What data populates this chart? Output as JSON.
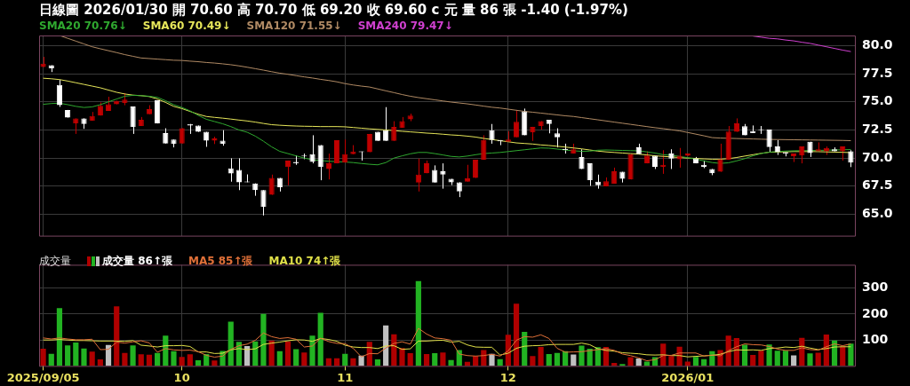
{
  "chart_data": [
    {
      "type": "candlestick",
      "title": "日線圖 2026/01/30 開 70.60 高 70.70 低 69.20 收 69.60 c 元 量 86 張 -1.40 (-1.97%)",
      "categories": [
        "2025/09/05",
        null,
        null,
        null,
        null,
        null,
        null,
        null,
        null,
        null,
        null,
        null,
        null,
        null,
        null,
        null,
        null,
        "10",
        null,
        null,
        null,
        null,
        null,
        null,
        null,
        null,
        null,
        null,
        null,
        null,
        null,
        null,
        null,
        null,
        null,
        null,
        null,
        "11",
        null,
        null,
        null,
        null,
        null,
        null,
        null,
        null,
        null,
        null,
        null,
        null,
        null,
        null,
        null,
        null,
        null,
        null,
        null,
        "12",
        null,
        null,
        null,
        null,
        null,
        null,
        null,
        null,
        null,
        null,
        null,
        null,
        null,
        null,
        null,
        null,
        null,
        null,
        null,
        null,
        null,
        "2026/01",
        null,
        null,
        null,
        null,
        null,
        null,
        null,
        null,
        null,
        null,
        null,
        null,
        null,
        null,
        null,
        null,
        null,
        null,
        null,
        null
      ],
      "series": [
        {
          "type": "candlestick",
          "ohlc": [
            [
              78.1,
              79.0,
              78.1,
              78.4
            ],
            [
              78.25,
              78.25,
              77.65,
              77.98
            ],
            [
              76.5,
              76.95,
              74.55,
              74.7
            ],
            [
              74.28,
              74.28,
              73.6,
              73.6
            ],
            [
              73.08,
              73.53,
              72.15,
              73.53
            ],
            [
              73.53,
              73.53,
              72.6,
              73.03
            ],
            [
              73.33,
              74.1,
              73.33,
              73.73
            ],
            [
              73.78,
              74.95,
              73.78,
              74.65
            ],
            [
              74.2,
              75.45,
              74.2,
              74.78
            ],
            [
              74.78,
              75.1,
              74.78,
              75.08
            ],
            [
              74.9,
              75.78,
              74.7,
              75.2
            ],
            [
              74.58,
              74.58,
              72.15,
              72.78
            ],
            [
              72.85,
              73.65,
              72.85,
              73.4
            ],
            [
              73.9,
              74.7,
              73.9,
              74.35
            ],
            [
              75.15,
              75.15,
              73.08,
              73.08
            ],
            [
              72.23,
              72.65,
              71.3,
              71.3
            ],
            [
              71.65,
              71.65,
              70.95,
              71.25
            ],
            [
              71.3,
              72.65,
              71.3,
              72.65
            ],
            [
              73.03,
              73.03,
              72.15,
              72.9
            ],
            [
              72.9,
              72.9,
              72.33,
              72.33
            ],
            [
              72.33,
              72.33,
              71.0,
              71.55
            ],
            [
              71.55,
              71.9,
              71.25,
              71.75
            ],
            [
              71.55,
              72.48,
              71.1,
              71.28
            ],
            [
              69.08,
              69.98,
              67.9,
              68.63
            ],
            [
              68.95,
              69.98,
              67.15,
              67.85
            ],
            [
              67.9,
              68.55,
              67.85,
              67.85
            ],
            [
              67.75,
              67.75,
              66.65,
              67.15
            ],
            [
              67.15,
              67.15,
              64.9,
              65.65
            ],
            [
              66.73,
              68.53,
              66.73,
              68.23
            ],
            [
              68.23,
              68.23,
              67.03,
              67.4
            ],
            [
              69.23,
              69.78,
              67.58,
              69.78
            ],
            [
              69.65,
              70.23,
              69.4,
              69.53
            ],
            [
              70.23,
              70.4,
              69.9,
              70.15
            ],
            [
              70.35,
              72.03,
              69.53,
              69.65
            ],
            [
              71.15,
              71.15,
              68.03,
              69.23
            ],
            [
              69.03,
              70.4,
              68.1,
              69.53
            ],
            [
              69.53,
              71.58,
              69.53,
              71.58
            ],
            [
              69.6,
              71.65,
              69.6,
              70.35
            ],
            [
              70.35,
              71.15,
              70.35,
              70.58
            ],
            [
              70.58,
              70.58,
              69.78,
              70.53
            ],
            [
              70.53,
              72.15,
              70.53,
              72.15
            ],
            [
              72.33,
              72.33,
              71.53,
              71.53
            ],
            [
              72.48,
              74.53,
              71.53,
              71.53
            ],
            [
              71.53,
              73.28,
              71.53,
              72.78
            ],
            [
              72.7,
              73.65,
              72.7,
              73.28
            ],
            [
              73.45,
              73.95,
              73.28,
              73.78
            ],
            [
              67.83,
              69.95,
              67.03,
              68.53
            ],
            [
              68.65,
              69.78,
              68.65,
              69.53
            ],
            [
              68.95,
              69.35,
              67.83,
              67.83
            ],
            [
              68.83,
              69.53,
              67.28,
              68.53
            ],
            [
              68.15,
              68.15,
              67.6,
              67.85
            ],
            [
              67.85,
              67.85,
              66.53,
              67.03
            ],
            [
              67.9,
              69.4,
              67.9,
              68.2
            ],
            [
              68.23,
              69.85,
              68.23,
              69.85
            ],
            [
              69.85,
              72.03,
              69.85,
              71.6
            ],
            [
              72.48,
              73.03,
              71.28,
              71.6
            ],
            [
              71.6,
              71.6,
              71.15,
              71.5
            ],
            [
              71.45,
              72.4,
              71.45,
              71.65
            ],
            [
              71.85,
              74.28,
              71.85,
              73.23
            ],
            [
              74.15,
              74.4,
              72.03,
              72.03
            ],
            [
              72.28,
              72.78,
              71.53,
              72.78
            ],
            [
              72.85,
              73.28,
              72.53,
              73.28
            ],
            [
              73.4,
              73.4,
              72.2,
              73.03
            ],
            [
              72.2,
              72.65,
              70.95,
              71.85
            ],
            [
              70.83,
              71.28,
              70.4,
              70.73
            ],
            [
              70.4,
              71.28,
              70.4,
              70.78
            ],
            [
              70.1,
              70.78,
              69.03,
              69.03
            ],
            [
              69.53,
              69.53,
              67.53,
              68.03
            ],
            [
              67.9,
              68.53,
              67.28,
              67.58
            ],
            [
              67.48,
              68.28,
              67.48,
              67.95
            ],
            [
              67.73,
              69.15,
              67.73,
              68.83
            ],
            [
              68.78,
              68.78,
              67.83,
              68.15
            ],
            [
              68.1,
              70.35,
              68.1,
              70.35
            ],
            [
              70.95,
              71.28,
              70.35,
              70.35
            ],
            [
              69.53,
              70.6,
              69.53,
              70.23
            ],
            [
              70.2,
              70.2,
              69.03,
              69.2
            ],
            [
              69.2,
              70.7,
              68.6,
              69.4
            ],
            [
              70.4,
              70.78,
              69.03,
              69.95
            ],
            [
              69.9,
              70.9,
              69.15,
              70.2
            ],
            [
              70.2,
              70.4,
              70.2,
              70.4
            ],
            [
              69.98,
              70.1,
              69.53,
              69.53
            ],
            [
              69.4,
              69.78,
              69.1,
              69.23
            ],
            [
              69.03,
              69.03,
              68.48,
              68.65
            ],
            [
              68.78,
              71.28,
              68.78,
              69.9
            ],
            [
              69.85,
              72.85,
              69.85,
              72.35
            ],
            [
              72.33,
              73.53,
              72.33,
              73.08
            ],
            [
              72.83,
              73.03,
              72.03,
              72.03
            ],
            [
              72.4,
              72.9,
              72.23,
              72.23
            ],
            [
              72.53,
              72.85,
              72.15,
              72.48
            ],
            [
              72.53,
              72.53,
              70.53,
              70.98
            ],
            [
              71.03,
              71.6,
              70.28,
              70.53
            ],
            [
              70.53,
              70.53,
              70.15,
              70.4
            ],
            [
              70.15,
              70.4,
              69.65,
              70.4
            ],
            [
              70.23,
              71.03,
              69.53,
              71.03
            ],
            [
              71.45,
              71.45,
              70.1,
              70.45
            ],
            [
              70.6,
              71.4,
              70.6,
              70.78
            ],
            [
              70.6,
              71.03,
              70.28,
              70.9
            ],
            [
              70.78,
              70.95,
              70.6,
              70.6
            ],
            [
              70.6,
              71.03,
              69.78,
              71.03
            ],
            [
              70.6,
              70.7,
              69.2,
              69.6
            ]
          ],
          "colors": [
            "#c00000",
            "#ffffff",
            "#ffffff",
            "#ffffff",
            "#c00000",
            "#ffffff",
            "#c00000",
            "#c00000",
            "#c00000",
            "#c00000",
            "#c00000",
            "#ffffff",
            "#c00000",
            "#c00000",
            "#ffffff",
            "#ffffff",
            "#ffffff",
            "#c00000",
            "#ffffff",
            "#ffffff",
            "#ffffff",
            "#c00000",
            "#ffffff",
            "#ffffff",
            "#ffffff",
            "#ffffff",
            "#ffffff",
            "#ffffff",
            "#c00000",
            "#ffffff",
            "#c00000",
            "#ffffff",
            "#ffffff",
            "#ffffff",
            "#ffffff",
            "#c00000",
            "#c00000",
            "#c00000",
            "#c00000",
            "#ffffff",
            "#c00000",
            "#ffffff",
            "#ffffff",
            "#c00000",
            "#c00000",
            "#c00000",
            "#c00000",
            "#c00000",
            "#ffffff",
            "#ffffff",
            "#ffffff",
            "#ffffff",
            "#c00000",
            "#c00000",
            "#c00000",
            "#ffffff",
            "#ffffff",
            "#c00000",
            "#c00000",
            "#ffffff",
            "#c00000",
            "#c00000",
            "#ffffff",
            "#ffffff",
            "#ffffff",
            "#c00000",
            "#ffffff",
            "#ffffff",
            "#ffffff",
            "#c00000",
            "#c00000",
            "#ffffff",
            "#c00000",
            "#ffffff",
            "#c00000",
            "#ffffff",
            "#c00000",
            "#ffffff",
            "#c00000",
            "#c00000",
            "#ffffff",
            "#ffffff",
            "#ffffff",
            "#c00000",
            "#c00000",
            "#c00000",
            "#ffffff",
            "#ffffff",
            "#ffffff",
            "#ffffff",
            "#ffffff",
            "#ffffff",
            "#c00000",
            "#c00000",
            "#ffffff",
            "#c00000",
            "#c00000",
            "#ffffff",
            "#c00000",
            "#ffffff"
          ]
        },
        {
          "type": "line",
          "name": "SMA20 70.76↓",
          "color": "#2fa82f",
          "values": [
            74.78,
            74.85,
            74.88,
            74.75,
            74.6,
            74.5,
            74.55,
            74.75,
            75.0,
            75.25,
            75.5,
            75.58,
            75.55,
            75.5,
            75.4,
            75.1,
            74.75,
            74.5,
            74.2,
            73.8,
            73.45,
            73.25,
            73.05,
            72.8,
            72.5,
            72.3,
            71.95,
            71.5,
            71.0,
            70.6,
            70.4,
            70.2,
            70.0,
            69.85,
            69.78,
            69.72,
            69.68,
            69.65,
            69.6,
            69.52,
            69.45,
            69.4,
            69.6,
            70.0,
            70.2,
            70.38,
            70.5,
            70.5,
            70.4,
            70.28,
            70.15,
            70.1,
            70.18,
            70.3,
            70.4,
            70.45,
            70.5,
            70.58,
            70.66,
            70.74,
            70.82,
            70.9,
            70.88,
            70.8,
            70.72,
            70.65,
            70.6,
            70.62,
            70.7,
            70.72,
            70.7,
            70.68,
            70.66,
            70.65,
            70.55,
            70.45,
            70.3,
            70.25,
            70.15,
            70.03,
            69.9,
            69.75,
            69.6,
            69.53,
            69.58,
            69.75,
            69.95,
            70.2,
            70.4,
            70.53,
            70.58,
            70.62,
            70.65,
            70.66,
            70.67,
            70.68,
            70.7,
            70.72,
            70.74,
            70.76
          ]
        },
        {
          "type": "line",
          "name": "SMA60 70.49↓",
          "color": "#e6e65a",
          "values": [
            77.1,
            77.05,
            76.98,
            76.85,
            76.7,
            76.55,
            76.4,
            76.25,
            76.05,
            75.85,
            75.7,
            75.6,
            75.55,
            75.47,
            75.25,
            74.95,
            74.6,
            74.4,
            74.15,
            73.9,
            73.7,
            73.62,
            73.55,
            73.47,
            73.38,
            73.3,
            73.2,
            73.08,
            72.97,
            72.92,
            72.88,
            72.85,
            72.83,
            72.82,
            72.8,
            72.8,
            72.8,
            72.78,
            72.72,
            72.66,
            72.6,
            72.55,
            72.5,
            72.44,
            72.38,
            72.33,
            72.28,
            72.22,
            72.18,
            72.12,
            72.06,
            72.02,
            71.95,
            71.87,
            71.75,
            71.65,
            71.55,
            71.45,
            71.35,
            71.3,
            71.25,
            71.17,
            71.12,
            71.05,
            70.98,
            70.9,
            70.82,
            70.72,
            70.62,
            70.55,
            70.5,
            70.45,
            70.4,
            70.35,
            70.28,
            70.2,
            70.15,
            70.1,
            70.05,
            70.0,
            69.97,
            69.93,
            69.9,
            69.9,
            69.95,
            70.05,
            70.18,
            70.3,
            70.42,
            70.52,
            70.54,
            70.56,
            70.58,
            70.58,
            70.58,
            70.57,
            70.55,
            70.53,
            70.51,
            70.49
          ]
        },
        {
          "type": "line",
          "name": "SMA120 71.55↓",
          "color": "#b08a64",
          "values": [
            null,
            null,
            80.9,
            80.65,
            80.4,
            80.15,
            79.9,
            79.72,
            79.55,
            79.38,
            79.2,
            79.05,
            78.9,
            78.85,
            78.8,
            78.75,
            78.7,
            78.68,
            78.62,
            78.57,
            78.5,
            78.45,
            78.38,
            78.3,
            78.2,
            78.08,
            77.95,
            77.82,
            77.68,
            77.55,
            77.45,
            77.33,
            77.22,
            77.12,
            77.0,
            76.9,
            76.78,
            76.62,
            76.5,
            76.4,
            76.32,
            76.15,
            75.98,
            75.82,
            75.65,
            75.5,
            75.38,
            75.28,
            75.18,
            75.08,
            74.98,
            74.9,
            74.82,
            74.72,
            74.62,
            74.52,
            74.45,
            74.35,
            74.25,
            74.15,
            74.08,
            74.0,
            73.92,
            73.84,
            73.76,
            73.7,
            73.6,
            73.5,
            73.4,
            73.3,
            73.2,
            73.1,
            73.0,
            72.9,
            72.8,
            72.7,
            72.62,
            72.52,
            72.42,
            72.28,
            72.13,
            71.98,
            71.82,
            71.78,
            71.76,
            71.74,
            71.72,
            71.7,
            71.68,
            71.66,
            71.65,
            71.64,
            71.63,
            71.62,
            71.61,
            71.6,
            71.59,
            71.58,
            71.57,
            71.55
          ]
        },
        {
          "type": "line",
          "name": "SMA240 79.47↓",
          "color": "#d040d0",
          "values": [
            null,
            null,
            null,
            null,
            null,
            null,
            null,
            null,
            null,
            null,
            null,
            null,
            null,
            null,
            null,
            null,
            null,
            null,
            null,
            null,
            null,
            null,
            null,
            null,
            null,
            null,
            null,
            null,
            null,
            null,
            null,
            null,
            null,
            null,
            null,
            null,
            null,
            null,
            null,
            null,
            null,
            null,
            null,
            null,
            null,
            null,
            null,
            null,
            null,
            null,
            null,
            null,
            null,
            null,
            null,
            null,
            null,
            null,
            null,
            null,
            null,
            null,
            null,
            null,
            null,
            null,
            null,
            null,
            null,
            null,
            null,
            null,
            null,
            null,
            null,
            null,
            null,
            null,
            null,
            null,
            null,
            null,
            null,
            null,
            null,
            null,
            null,
            80.85,
            80.75,
            80.65,
            80.6,
            80.5,
            80.42,
            80.3,
            80.2,
            80.05,
            79.9,
            79.75,
            79.6,
            79.47
          ]
        }
      ],
      "ylim": [
        63.1,
        80.9
      ],
      "yticks": [
        {
          "value": 65,
          "label": "65.0"
        },
        {
          "value": 67.5,
          "label": "67.5"
        },
        {
          "value": 70,
          "label": "70.0"
        },
        {
          "value": 72.5,
          "label": "72.5"
        },
        {
          "value": 75,
          "label": "75.0"
        },
        {
          "value": 77.5,
          "label": "77.5"
        },
        {
          "value": 80,
          "label": "80.0"
        }
      ],
      "grid": true,
      "legend": "top left",
      "tick_labels": "y"
    },
    {
      "type": "bar",
      "title": "成交量",
      "categories": [
        "2025/09/05",
        null,
        null,
        null,
        null,
        null,
        null,
        null,
        null,
        null,
        null,
        null,
        null,
        null,
        null,
        null,
        null,
        "10",
        null,
        null,
        null,
        null,
        null,
        null,
        null,
        null,
        null,
        null,
        null,
        null,
        null,
        null,
        null,
        null,
        null,
        null,
        null,
        "11",
        null,
        null,
        null,
        null,
        null,
        null,
        null,
        null,
        null,
        null,
        null,
        null,
        null,
        null,
        null,
        null,
        null,
        null,
        null,
        "12",
        null,
        null,
        null,
        null,
        null,
        null,
        null,
        null,
        null,
        null,
        null,
        null,
        null,
        null,
        null,
        null,
        null,
        null,
        null,
        null,
        null,
        "2026/01",
        null,
        null,
        null,
        null,
        null,
        null,
        null,
        null,
        null,
        null,
        null,
        null,
        null,
        null,
        null,
        null,
        null,
        null,
        null,
        null
      ],
      "series": [
        {
          "type": "bar",
          "name": "成交量 86↑張",
          "values": [
            66,
            47,
            223,
            79,
            90,
            67,
            55,
            25,
            81,
            230,
            50,
            79,
            45,
            43,
            50,
            117,
            57,
            35,
            45,
            22,
            46,
            21,
            58,
            171,
            93,
            77,
            95,
            201,
            98,
            57,
            95,
            65,
            52,
            117,
            205,
            30,
            30,
            47,
            30,
            40,
            93,
            25,
            156,
            122,
            69,
            49,
            327,
            46,
            49,
            52,
            23,
            61,
            16,
            38,
            61,
            47,
            26,
            120,
            240,
            131,
            38,
            73,
            46,
            50,
            57,
            44,
            78,
            66,
            72,
            73,
            12,
            7,
            34,
            29,
            17,
            34,
            86,
            38,
            74,
            17,
            35,
            26,
            57,
            61,
            117,
            107,
            82,
            42,
            59,
            83,
            59,
            59,
            41,
            108,
            48,
            51,
            121,
            98,
            74,
            86
          ],
          "colors": [
            "#b00000",
            "#22b322",
            "#22b322",
            "#22b322",
            "#22b322",
            "#22b322",
            "#b00000",
            "#b00000",
            "#c0c0c0",
            "#b00000",
            "#b00000",
            "#22b322",
            "#b00000",
            "#b00000",
            "#22b322",
            "#22b322",
            "#22b322",
            "#b00000",
            "#b00000",
            "#22b322",
            "#22b322",
            "#b00000",
            "#22b322",
            "#22b322",
            "#22b322",
            "#c0c0c0",
            "#22b322",
            "#22b322",
            "#b00000",
            "#22b322",
            "#b00000",
            "#22b322",
            "#b00000",
            "#22b322",
            "#22b322",
            "#b00000",
            "#b00000",
            "#22b322",
            "#b00000",
            "#c0c0c0",
            "#b00000",
            "#22b322",
            "#c0c0c0",
            "#b00000",
            "#b00000",
            "#b00000",
            "#22b322",
            "#b00000",
            "#22b322",
            "#b00000",
            "#22b322",
            "#22b322",
            "#b00000",
            "#b00000",
            "#b00000",
            "#c0c0c0",
            "#22b322",
            "#b00000",
            "#b00000",
            "#22b322",
            "#b00000",
            "#b00000",
            "#22b322",
            "#22b322",
            "#22b322",
            "#c0c0c0",
            "#22b322",
            "#22b322",
            "#22b322",
            "#b00000",
            "#b00000",
            "#22b322",
            "#b00000",
            "#c0c0c0",
            "#22b322",
            "#22b322",
            "#b00000",
            "#b00000",
            "#b00000",
            "#b00000",
            "#22b322",
            "#22b322",
            "#22b322",
            "#b00000",
            "#b00000",
            "#b00000",
            "#22b322",
            "#b00000",
            "#b00000",
            "#22b322",
            "#22b322",
            "#22b322",
            "#c0c0c0",
            "#b00000",
            "#22b322",
            "#b00000",
            "#b00000",
            "#22b322",
            "#b00000",
            "#22b322"
          ]
        },
        {
          "type": "line",
          "name": "MA5 85↑張",
          "color": "#e07038",
          "values": [
            108,
            104,
            108,
            104,
            101,
            101,
            103,
            63,
            64,
            92,
            88,
            93,
            97,
            89,
            53,
            67,
            62,
            60,
            61,
            55,
            41,
            34,
            38,
            64,
            78,
            84,
            99,
            127,
            113,
            106,
            109,
            103,
            73,
            77,
            107,
            94,
            87,
            86,
            68,
            35,
            48,
            47,
            69,
            87,
            93,
            84,
            145,
            123,
            108,
            105,
            99,
            46,
            40,
            38,
            40,
            45,
            38,
            58,
            99,
            113,
            111,
            120,
            106,
            68,
            53,
            54,
            55,
            59,
            63,
            67,
            60,
            46,
            40,
            31,
            20,
            24,
            40,
            41,
            50,
            50,
            50,
            38,
            42,
            39,
            59,
            74,
            85,
            82,
            81,
            75,
            65,
            60,
            60,
            70,
            63,
            61,
            74,
            85,
            78,
            85
          ]
        },
        {
          "type": "line",
          "name": "MA10 74↑張",
          "color": "#e0e048",
          "values": [
            100,
            100,
            102,
            100,
            98,
            98,
            97,
            96,
            96,
            96,
            95,
            98,
            80,
            77,
            73,
            78,
            78,
            79,
            75,
            54,
            54,
            48,
            49,
            62,
            67,
            63,
            66,
            83,
            88,
            92,
            97,
            101,
            100,
            95,
            106,
            102,
            95,
            80,
            73,
            71,
            71,
            67,
            77,
            78,
            64,
            66,
            96,
            96,
            98,
            99,
            92,
            95,
            81,
            73,
            72,
            72,
            42,
            49,
            68,
            76,
            78,
            79,
            82,
            83,
            83,
            83,
            88,
            82,
            66,
            60,
            57,
            51,
            49,
            47,
            43,
            42,
            43,
            40,
            40,
            35,
            37,
            39,
            41,
            45,
            55,
            62,
            61,
            62,
            60,
            67,
            69,
            73,
            71,
            76,
            69,
            63,
            67,
            73,
            74,
            74
          ]
        }
      ],
      "ylim": [
        0,
        390
      ],
      "yticks": [
        100,
        200,
        300
      ],
      "grid": true,
      "legend": "top left"
    }
  ]
}
